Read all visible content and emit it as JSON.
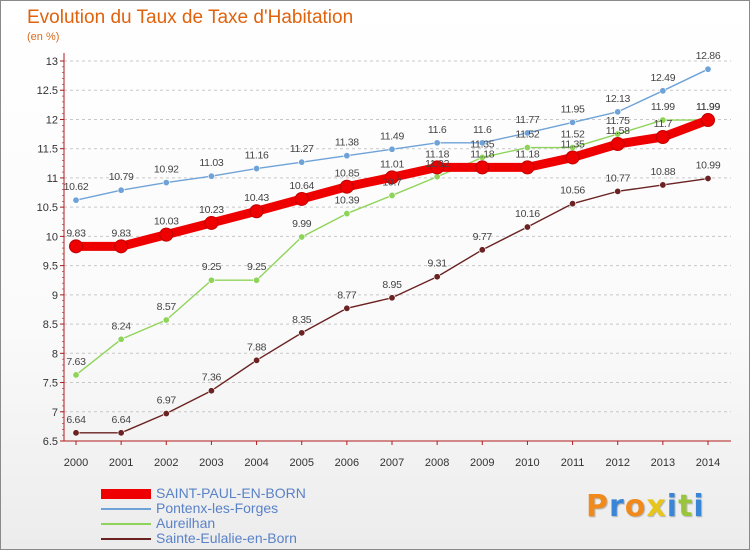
{
  "title": "Evolution du Taux de Taxe d'Habitation",
  "unit_label": "(en %)",
  "brand": {
    "text": "Proxiti",
    "letter_colors": [
      "#f08a1c",
      "#3a86d6",
      "#f08a1c",
      "#e8c51a",
      "#3a86d6",
      "#9ac53a",
      "#3a86d6"
    ]
  },
  "colors": {
    "title": "#e0620c",
    "axis": "#b01c1c",
    "grid": "#c8c8c8",
    "tick_text": "#333333",
    "value_text": "#444444",
    "legend_text": "#5a82c8"
  },
  "chart_data": {
    "type": "line",
    "title": "Evolution du Taux de Taxe d'Habitation",
    "ylabel": "(en %)",
    "xlabel": "",
    "x": [
      "2000",
      "2001",
      "2002",
      "2003",
      "2004",
      "2005",
      "2006",
      "2007",
      "2008",
      "2009",
      "2010",
      "2011",
      "2012",
      "2013",
      "2014"
    ],
    "ylim": [
      6.5,
      13
    ],
    "yticks": [
      "6.5",
      "7",
      "7.5",
      "8",
      "8.5",
      "9",
      "9.5",
      "10",
      "10.5",
      "11",
      "11.5",
      "12",
      "12.5",
      "13"
    ],
    "grid": "horizontal dashed",
    "legend_placement": "bottom-left",
    "series": [
      {
        "name": "SAINT-PAUL-EN-BORN",
        "color": "#ee0000",
        "emphasis": "thick",
        "values": [
          9.83,
          9.83,
          10.03,
          10.23,
          10.43,
          10.64,
          10.85,
          11.01,
          11.18,
          11.18,
          11.18,
          11.35,
          11.58,
          11.7,
          11.99
        ],
        "labels": [
          "9.83",
          "9.83",
          "10.03",
          "10.23",
          "10.43",
          "10.64",
          "10.85",
          "11.01",
          "11.18",
          "11.18",
          "11.18",
          "11.35",
          "11.58",
          "11.7",
          "11.99"
        ]
      },
      {
        "name": "Pontenx-les-Forges",
        "color": "#6fa3d8",
        "values": [
          10.62,
          10.79,
          10.92,
          11.03,
          11.16,
          11.27,
          11.38,
          11.49,
          11.6,
          11.6,
          11.77,
          11.95,
          12.13,
          12.49,
          12.86
        ],
        "labels": [
          "10.62",
          "10.79",
          "10.92",
          "11.03",
          "11.16",
          "11.27",
          "11.38",
          "11.49",
          "11.6",
          "11.6",
          "11.77",
          "11.95",
          "12.13",
          "12.49",
          "12.86"
        ]
      },
      {
        "name": "Aureilhan",
        "color": "#8fd45a",
        "values": [
          7.63,
          8.24,
          8.57,
          9.25,
          9.25,
          9.99,
          10.39,
          10.7,
          11.02,
          11.35,
          11.52,
          11.52,
          11.75,
          11.99,
          11.99
        ],
        "labels": [
          "7.63",
          "8.24",
          "8.57",
          "9.25",
          "9.25",
          "9.99",
          "10.39",
          "10.7",
          "11.02",
          "11.35",
          "11.52",
          "11.52",
          "11.75",
          "11.99",
          "11.99"
        ]
      },
      {
        "name": "Sainte-Eulalie-en-Born",
        "color": "#6b2222",
        "values": [
          6.64,
          6.64,
          6.97,
          7.36,
          7.88,
          8.35,
          8.77,
          8.95,
          9.31,
          9.77,
          10.16,
          10.56,
          10.77,
          10.88,
          10.99
        ],
        "labels": [
          "6.64",
          "6.64",
          "6.97",
          "7.36",
          "7.88",
          "8.35",
          "8.77",
          "8.95",
          "9.31",
          "9.77",
          "10.16",
          "10.56",
          "10.77",
          "10.88",
          "10.99"
        ]
      }
    ]
  }
}
